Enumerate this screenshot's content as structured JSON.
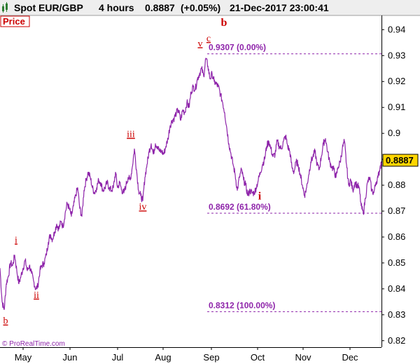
{
  "header": {
    "instrument": "Spot EUR/GBP",
    "timeframe": "4 hours",
    "last_price": "0.8887",
    "change": "(+0.05%)",
    "datetime": "21-Dec-2017 23:00:41"
  },
  "panel_label": "Price",
  "copyright": "© ProRealTime.com",
  "price_badge": "0.8887",
  "colors": {
    "series": "#8e24aa",
    "wave_label": "#cc0000",
    "fib_line": "#8e24aa",
    "header_bg": "#eeeeee",
    "badge_bg": "#ffd600"
  },
  "chart_data": {
    "type": "line",
    "series": [
      {
        "values": [
          [
            0,
            0.848
          ],
          [
            3,
            0.835
          ],
          [
            6,
            0.832
          ],
          [
            9,
            0.842
          ],
          [
            12,
            0.845
          ],
          [
            15,
            0.85
          ],
          [
            18,
            0.849
          ],
          [
            21,
            0.853
          ],
          [
            24,
            0.847
          ],
          [
            27,
            0.842
          ],
          [
            30,
            0.845
          ],
          [
            33,
            0.848
          ],
          [
            36,
            0.851
          ],
          [
            39,
            0.847
          ],
          [
            42,
            0.849
          ],
          [
            45,
            0.846
          ],
          [
            48,
            0.843
          ],
          [
            51,
            0.84
          ],
          [
            54,
            0.841
          ],
          [
            57,
            0.847
          ],
          [
            60,
            0.849
          ],
          [
            63,
            0.85
          ],
          [
            66,
            0.853
          ],
          [
            69,
            0.858
          ],
          [
            72,
            0.861
          ],
          [
            75,
            0.859
          ],
          [
            78,
            0.862
          ],
          [
            81,
            0.865
          ],
          [
            84,
            0.863
          ],
          [
            87,
            0.866
          ],
          [
            90,
            0.864
          ],
          [
            93,
            0.869
          ],
          [
            96,
            0.873
          ],
          [
            99,
            0.871
          ],
          [
            102,
            0.868
          ],
          [
            105,
            0.872
          ],
          [
            108,
            0.876
          ],
          [
            111,
            0.879
          ],
          [
            114,
            0.871
          ],
          [
            117,
            0.868
          ],
          [
            120,
            0.878
          ],
          [
            123,
            0.882
          ],
          [
            126,
            0.885
          ],
          [
            129,
            0.883
          ],
          [
            132,
            0.879
          ],
          [
            135,
            0.877
          ],
          [
            138,
            0.879
          ],
          [
            141,
            0.882
          ],
          [
            144,
            0.881
          ],
          [
            147,
            0.878
          ],
          [
            150,
            0.879
          ],
          [
            153,
            0.881
          ],
          [
            156,
            0.879
          ],
          [
            159,
            0.878
          ],
          [
            162,
            0.879
          ],
          [
            165,
            0.885
          ],
          [
            168,
            0.879
          ],
          [
            171,
            0.881
          ],
          [
            174,
            0.878
          ],
          [
            177,
            0.877
          ],
          [
            180,
            0.88
          ],
          [
            183,
            0.883
          ],
          [
            186,
            0.882
          ],
          [
            189,
            0.887
          ],
          [
            192,
            0.894
          ],
          [
            195,
            0.886
          ],
          [
            198,
            0.878
          ],
          [
            201,
            0.876
          ],
          [
            204,
            0.874
          ],
          [
            207,
            0.883
          ],
          [
            210,
            0.888
          ],
          [
            213,
            0.893
          ],
          [
            216,
            0.896
          ],
          [
            219,
            0.892
          ],
          [
            222,
            0.896
          ],
          [
            225,
            0.895
          ],
          [
            228,
            0.893
          ],
          [
            231,
            0.893
          ],
          [
            234,
            0.892
          ],
          [
            237,
            0.895
          ],
          [
            240,
            0.898
          ],
          [
            243,
            0.903
          ],
          [
            246,
            0.905
          ],
          [
            249,
            0.906
          ],
          [
            252,
            0.908
          ],
          [
            255,
            0.909
          ],
          [
            258,
            0.905
          ],
          [
            261,
            0.909
          ],
          [
            264,
            0.908
          ],
          [
            267,
            0.912
          ],
          [
            270,
            0.91
          ],
          [
            273,
            0.916
          ],
          [
            276,
            0.918
          ],
          [
            279,
            0.917
          ],
          [
            282,
            0.921
          ],
          [
            285,
            0.923
          ],
          [
            288,
            0.925
          ],
          [
            291,
            0.922
          ],
          [
            294,
            0.929
          ],
          [
            297,
            0.926
          ],
          [
            300,
            0.921
          ],
          [
            303,
            0.923
          ],
          [
            306,
            0.92
          ],
          [
            309,
            0.919
          ],
          [
            312,
            0.918
          ],
          [
            315,
            0.915
          ],
          [
            318,
            0.912
          ],
          [
            321,
            0.908
          ],
          [
            324,
            0.902
          ],
          [
            327,
            0.896
          ],
          [
            330,
            0.892
          ],
          [
            333,
            0.888
          ],
          [
            336,
            0.884
          ],
          [
            339,
            0.878
          ],
          [
            342,
            0.883
          ],
          [
            345,
            0.886
          ],
          [
            348,
            0.882
          ],
          [
            351,
            0.88
          ],
          [
            354,
            0.876
          ],
          [
            357,
            0.878
          ],
          [
            360,
            0.877
          ],
          [
            363,
            0.877
          ],
          [
            366,
            0.879
          ],
          [
            369,
            0.882
          ],
          [
            372,
            0.885
          ],
          [
            375,
            0.888
          ],
          [
            378,
            0.89
          ],
          [
            381,
            0.895
          ],
          [
            384,
            0.897
          ],
          [
            387,
            0.894
          ],
          [
            390,
            0.891
          ],
          [
            393,
            0.892
          ],
          [
            396,
            0.897
          ],
          [
            399,
            0.895
          ],
          [
            402,
            0.894
          ],
          [
            405,
            0.897
          ],
          [
            408,
            0.899
          ],
          [
            411,
            0.895
          ],
          [
            414,
            0.893
          ],
          [
            417,
            0.887
          ],
          [
            420,
            0.885
          ],
          [
            423,
            0.889
          ],
          [
            426,
            0.888
          ],
          [
            429,
            0.884
          ],
          [
            432,
            0.88
          ],
          [
            435,
            0.876
          ],
          [
            438,
            0.879
          ],
          [
            441,
            0.884
          ],
          [
            444,
            0.889
          ],
          [
            447,
            0.891
          ],
          [
            450,
            0.893
          ],
          [
            453,
            0.888
          ],
          [
            456,
            0.886
          ],
          [
            459,
            0.891
          ],
          [
            462,
            0.896
          ],
          [
            465,
            0.898
          ],
          [
            468,
            0.893
          ],
          [
            471,
            0.889
          ],
          [
            474,
            0.887
          ],
          [
            477,
            0.886
          ],
          [
            480,
            0.883
          ],
          [
            483,
            0.887
          ],
          [
            486,
            0.889
          ],
          [
            489,
            0.894
          ],
          [
            492,
            0.897
          ],
          [
            495,
            0.888
          ],
          [
            498,
            0.88
          ],
          [
            501,
            0.882
          ],
          [
            504,
            0.878
          ],
          [
            507,
            0.881
          ],
          [
            510,
            0.88
          ],
          [
            513,
            0.879
          ],
          [
            516,
            0.872
          ],
          [
            519,
            0.869
          ],
          [
            522,
            0.875
          ],
          [
            525,
            0.881
          ],
          [
            528,
            0.883
          ],
          [
            531,
            0.878
          ],
          [
            534,
            0.877
          ],
          [
            537,
            0.881
          ],
          [
            540,
            0.883
          ],
          [
            543,
            0.887
          ],
          [
            545,
            0.8887
          ]
        ]
      }
    ],
    "x_ticks": [
      {
        "label": "May",
        "x": 33
      },
      {
        "label": "Jun",
        "x": 100
      },
      {
        "label": "Jul",
        "x": 168
      },
      {
        "label": "Aug",
        "x": 233
      },
      {
        "label": "Sep",
        "x": 302
      },
      {
        "label": "Oct",
        "x": 368
      },
      {
        "label": "Nov",
        "x": 433
      },
      {
        "label": "Dec",
        "x": 500
      }
    ],
    "y_ticks": [
      "0.94",
      "0.93",
      "0.92",
      "0.91",
      "0.9",
      "0.89",
      "0.88",
      "0.87",
      "0.86",
      "0.85",
      "0.84",
      "0.83",
      "0.82"
    ],
    "ylim": [
      0.8175,
      0.9455
    ],
    "xlim": [
      0,
      545
    ],
    "fib_levels": [
      {
        "label": "0.9307 (0.00%)",
        "value": 0.9307
      },
      {
        "label": "0.8692 (61.80%)",
        "value": 0.8692
      },
      {
        "label": "0.8312 (100.00%)",
        "value": 0.8312
      }
    ],
    "wave_labels": [
      {
        "text": "b",
        "x": 8,
        "value": 0.8265,
        "bold": false
      },
      {
        "text": "i",
        "x": 23,
        "value": 0.8577,
        "bold": false
      },
      {
        "text": "ii",
        "x": 52,
        "value": 0.8365,
        "bold": false
      },
      {
        "text": "iii",
        "x": 187,
        "value": 0.8985,
        "bold": false
      },
      {
        "text": "iv",
        "x": 204,
        "value": 0.8705,
        "bold": false
      },
      {
        "text": "v",
        "x": 286,
        "value": 0.9335,
        "bold": false
      },
      {
        "text": "c",
        "x": 298,
        "value": 0.9355,
        "bold": false
      },
      {
        "text": "b",
        "x": 320,
        "value": 0.9415,
        "bold": true
      },
      {
        "text": "i",
        "x": 371,
        "value": 0.8745,
        "bold": true
      }
    ],
    "grid": false
  }
}
